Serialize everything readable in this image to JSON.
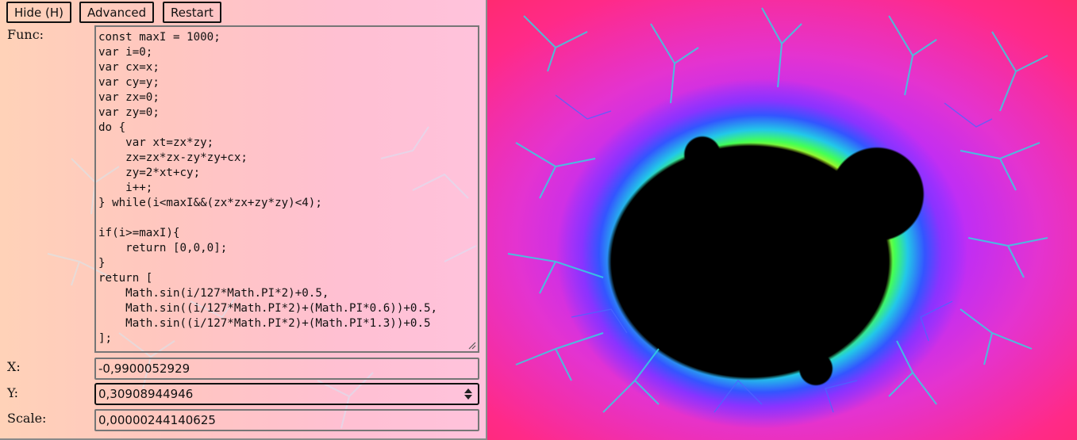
{
  "toolbar": {
    "hide_label": "Hide (H)",
    "advanced_label": "Advanced",
    "restart_label": "Restart"
  },
  "form": {
    "func_label": "Func:",
    "func_code": "const maxI = 1000;\nvar i=0;\nvar cx=x;\nvar cy=y;\nvar zx=0;\nvar zy=0;\ndo {\n    var xt=zx*zy;\n    zx=zx*zx-zy*zy+cx;\n    zy=2*xt+cy;\n    i++;\n} while(i<maxI&&(zx*zx+zy*zy)<4);\n\nif(i>=maxI){\n    return [0,0,0];\n}\nreturn [\n    Math.sin(i/127*Math.PI*2)+0.5,\n    Math.sin((i/127*Math.PI*2)+(Math.PI*0.6))+0.5,\n    Math.sin((i/127*Math.PI*2)+(Math.PI*1.3))+0.5\n];",
    "x_label": "X:",
    "x_value": "-0,9900052929",
    "y_label": "Y:",
    "y_value": "0,30908944946",
    "scale_label": "Scale:",
    "scale_value": "0,00000244140625"
  },
  "icons": {
    "spinner": "up-down-spinner-icon",
    "resize": "resize-grip-icon"
  },
  "colors": {
    "fractal_interior": "#000000",
    "fractal_outer": "#ff2a77",
    "fractal_mid": "#b52cff",
    "fractal_band_cyan": "#22c8e8",
    "fractal_band_yellow": "#ffee00",
    "panel_tint": "#ffc6c0"
  }
}
